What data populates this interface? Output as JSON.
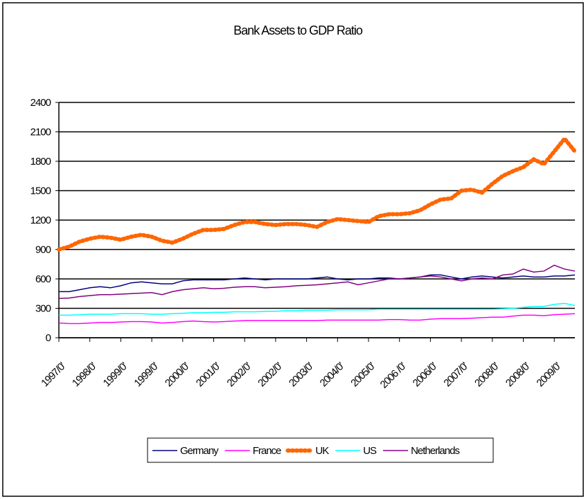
{
  "chart_data": {
    "type": "line",
    "title": "Bank Assets to GDP Ratio",
    "categories": [
      "1997/0'",
      null,
      null,
      "1998/0'",
      null,
      null,
      "1999/0'",
      null,
      null,
      "1999/0'",
      null,
      null,
      "2000/0'",
      null,
      null,
      "2001/0'",
      null,
      null,
      "2002/0'",
      null,
      null,
      "2002/0'",
      null,
      null,
      "2003/0'",
      null,
      null,
      "2004/0'",
      null,
      null,
      "2005/0'",
      null,
      null,
      "2006 /0'",
      null,
      null,
      "2006/0'",
      null,
      null,
      "2007/0'",
      null,
      null,
      "2008/0'",
      null,
      null,
      "2008/0'",
      null,
      null,
      "2009/0'",
      null,
      null
    ],
    "ylim": [
      0,
      2400
    ],
    "yticks": [
      0,
      300,
      600,
      900,
      1200,
      1500,
      1800,
      2100,
      2400
    ],
    "grid": true,
    "legend": "bottom",
    "series": [
      {
        "name": "Germany",
        "color": "#000080",
        "values": [
          470,
          470,
          490,
          510,
          520,
          510,
          530,
          560,
          570,
          560,
          550,
          550,
          580,
          590,
          590,
          590,
          590,
          600,
          610,
          600,
          590,
          600,
          600,
          600,
          600,
          610,
          620,
          600,
          590,
          600,
          600,
          610,
          610,
          600,
          610,
          620,
          640,
          640,
          620,
          600,
          620,
          630,
          620,
          610,
          620,
          630,
          620,
          620,
          630,
          630,
          640
        ]
      },
      {
        "name": "France",
        "color": "#ff00ff",
        "values": [
          150,
          145,
          145,
          150,
          155,
          155,
          160,
          165,
          165,
          160,
          150,
          155,
          165,
          170,
          165,
          160,
          165,
          170,
          175,
          175,
          175,
          175,
          175,
          175,
          175,
          175,
          180,
          180,
          180,
          180,
          180,
          180,
          185,
          185,
          180,
          180,
          190,
          195,
          195,
          195,
          200,
          205,
          210,
          210,
          220,
          230,
          230,
          225,
          235,
          240,
          245
        ]
      },
      {
        "name": "UK",
        "color": "#ff6600",
        "values": [
          900,
          930,
          980,
          1010,
          1030,
          1020,
          1000,
          1030,
          1050,
          1030,
          990,
          970,
          1010,
          1060,
          1100,
          1100,
          1110,
          1150,
          1180,
          1180,
          1160,
          1150,
          1160,
          1160,
          1150,
          1130,
          1180,
          1210,
          1200,
          1190,
          1180,
          1240,
          1260,
          1260,
          1270,
          1300,
          1360,
          1410,
          1420,
          1500,
          1510,
          1480,
          1570,
          1650,
          1700,
          1740,
          1820,
          1770,
          1900,
          2030,
          1900
        ]
      },
      {
        "name": "US",
        "color": "#00ffff",
        "values": [
          230,
          230,
          235,
          240,
          240,
          240,
          245,
          245,
          245,
          240,
          240,
          245,
          250,
          255,
          255,
          260,
          260,
          265,
          265,
          265,
          270,
          270,
          275,
          275,
          280,
          280,
          280,
          285,
          285,
          285,
          285,
          290,
          290,
          290,
          290,
          290,
          290,
          290,
          290,
          290,
          290,
          290,
          290,
          295,
          300,
          310,
          320,
          320,
          340,
          350,
          330
        ]
      },
      {
        "name": "Netherlands",
        "color": "#800080",
        "values": [
          400,
          405,
          420,
          430,
          440,
          440,
          445,
          450,
          455,
          460,
          440,
          470,
          490,
          500,
          510,
          500,
          505,
          515,
          520,
          520,
          510,
          515,
          520,
          530,
          535,
          540,
          550,
          560,
          570,
          540,
          560,
          580,
          600,
          600,
          610,
          620,
          630,
          620,
          600,
          580,
          600,
          610,
          600,
          640,
          650,
          700,
          670,
          680,
          740,
          700,
          680
        ]
      }
    ]
  }
}
